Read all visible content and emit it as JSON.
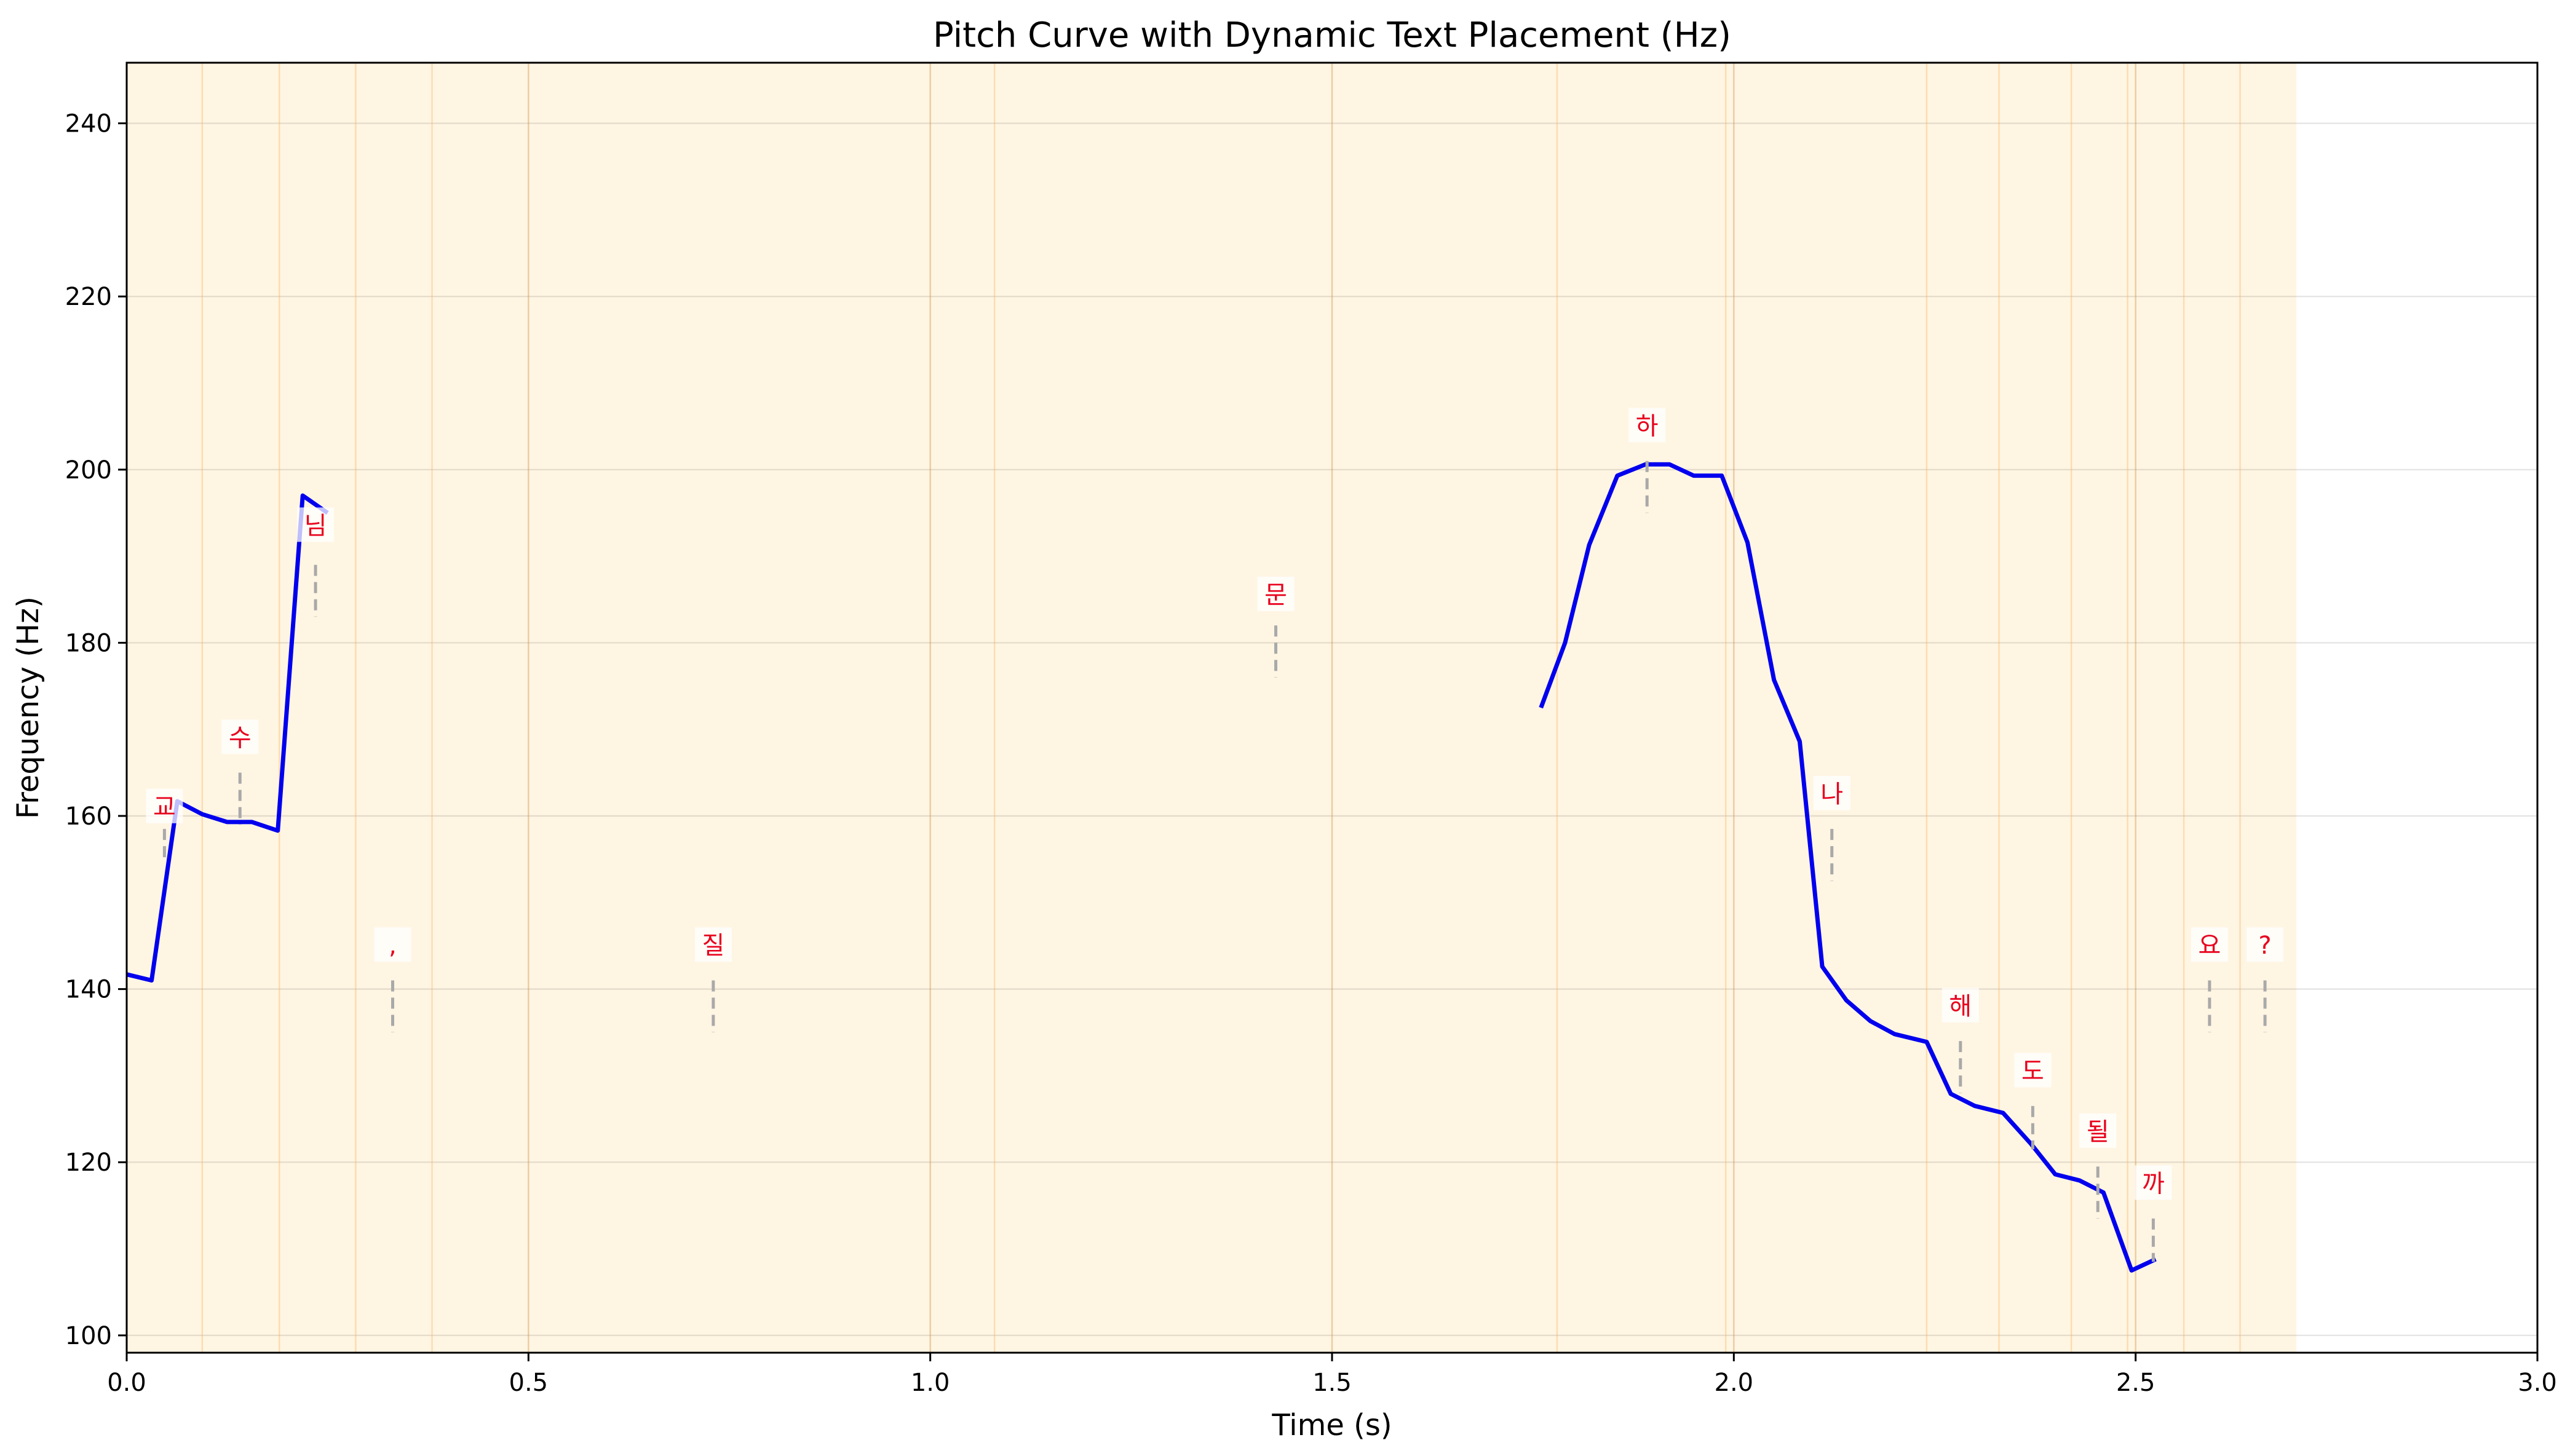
{
  "chart_data": {
    "type": "line",
    "title": "Pitch Curve with Dynamic Text Placement (Hz)",
    "xlabel": "Time (s)",
    "ylabel": "Frequency (Hz)",
    "xlim": [
      0,
      3.0
    ],
    "ylim": [
      98,
      247
    ],
    "xticks": [
      0.0,
      0.5,
      1.0,
      1.5,
      2.0,
      2.5,
      3.0
    ],
    "xtick_labels": [
      "0.0",
      "0.5",
      "1.0",
      "1.5",
      "2.0",
      "2.5",
      "3.0"
    ],
    "yticks": [
      100,
      120,
      140,
      160,
      180,
      200,
      220,
      240
    ],
    "ytick_labels": [
      "100",
      "120",
      "140",
      "160",
      "180",
      "200",
      "220",
      "240"
    ],
    "grid": true,
    "shaded_region": [
      0,
      2.7
    ],
    "boundaries": [
      0.094,
      0.19,
      0.285,
      0.38,
      0.5,
      1.0,
      1.08,
      1.5,
      1.78,
      1.99,
      2.0,
      2.24,
      2.33,
      2.42,
      2.49,
      2.5,
      2.56,
      2.63
    ],
    "series": [
      {
        "color": "#0000ee",
        "segments": [
          [
            [
              0.0,
              141.7
            ],
            [
              0.031,
              141.0
            ],
            [
              0.063,
              161.7
            ],
            [
              0.094,
              160.2
            ],
            [
              0.125,
              159.3
            ],
            [
              0.156,
              159.3
            ],
            [
              0.188,
              158.3
            ],
            [
              0.219,
              197.0
            ],
            [
              0.25,
              195.0
            ]
          ],
          [
            [
              1.76,
              172.5
            ],
            [
              1.79,
              180.0
            ],
            [
              1.82,
              191.3
            ],
            [
              1.855,
              199.3
            ],
            [
              1.89,
              200.6
            ],
            [
              1.92,
              200.6
            ],
            [
              1.95,
              199.3
            ],
            [
              1.985,
              199.3
            ],
            [
              2.017,
              191.6
            ],
            [
              2.05,
              175.7
            ],
            [
              2.082,
              168.6
            ],
            [
              2.11,
              142.6
            ],
            [
              2.14,
              138.7
            ],
            [
              2.17,
              136.3
            ],
            [
              2.2,
              134.8
            ],
            [
              2.24,
              133.9
            ],
            [
              2.27,
              127.9
            ],
            [
              2.3,
              126.5
            ],
            [
              2.335,
              125.7
            ],
            [
              2.37,
              122.1
            ],
            [
              2.4,
              118.6
            ],
            [
              2.43,
              117.9
            ],
            [
              2.46,
              116.5
            ],
            [
              2.495,
              107.5
            ],
            [
              2.525,
              108.8
            ]
          ]
        ]
      }
    ],
    "annotations": [
      {
        "text": "교",
        "x": 0.047,
        "y": 161.0,
        "tick_top": 158.5,
        "tick_bottom": 155.0
      },
      {
        "text": "수",
        "x": 0.141,
        "y": 169.0,
        "tick_top": 165.0,
        "tick_bottom": 159.0
      },
      {
        "text": "님",
        "x": 0.235,
        "y": 193.5,
        "tick_top": 189.0,
        "tick_bottom": 183.0
      },
      {
        "text": ",",
        "x": 0.331,
        "y": 145.0,
        "tick_top": 141.0,
        "tick_bottom": 135.0
      },
      {
        "text": "질",
        "x": 0.73,
        "y": 145.0,
        "tick_top": 141.0,
        "tick_bottom": 135.0
      },
      {
        "text": "문",
        "x": 1.43,
        "y": 185.5,
        "tick_top": 182.0,
        "tick_bottom": 176.0
      },
      {
        "text": "하",
        "x": 1.892,
        "y": 205.0,
        "tick_top": 201.0,
        "tick_bottom": 195.0
      },
      {
        "text": "나",
        "x": 2.122,
        "y": 162.5,
        "tick_top": 158.5,
        "tick_bottom": 152.5
      },
      {
        "text": "해",
        "x": 2.282,
        "y": 138.0,
        "tick_top": 134.0,
        "tick_bottom": 128.0
      },
      {
        "text": "도",
        "x": 2.372,
        "y": 130.5,
        "tick_top": 126.5,
        "tick_bottom": 121.5
      },
      {
        "text": "될",
        "x": 2.453,
        "y": 123.5,
        "tick_top": 119.5,
        "tick_bottom": 113.5
      },
      {
        "text": "까",
        "x": 2.522,
        "y": 117.5,
        "tick_top": 113.5,
        "tick_bottom": 108.5
      },
      {
        "text": "요",
        "x": 2.592,
        "y": 145.0,
        "tick_top": 141.0,
        "tick_bottom": 135.0
      },
      {
        "text": "?",
        "x": 2.661,
        "y": 145.0,
        "tick_top": 141.0,
        "tick_bottom": 135.0
      }
    ]
  }
}
